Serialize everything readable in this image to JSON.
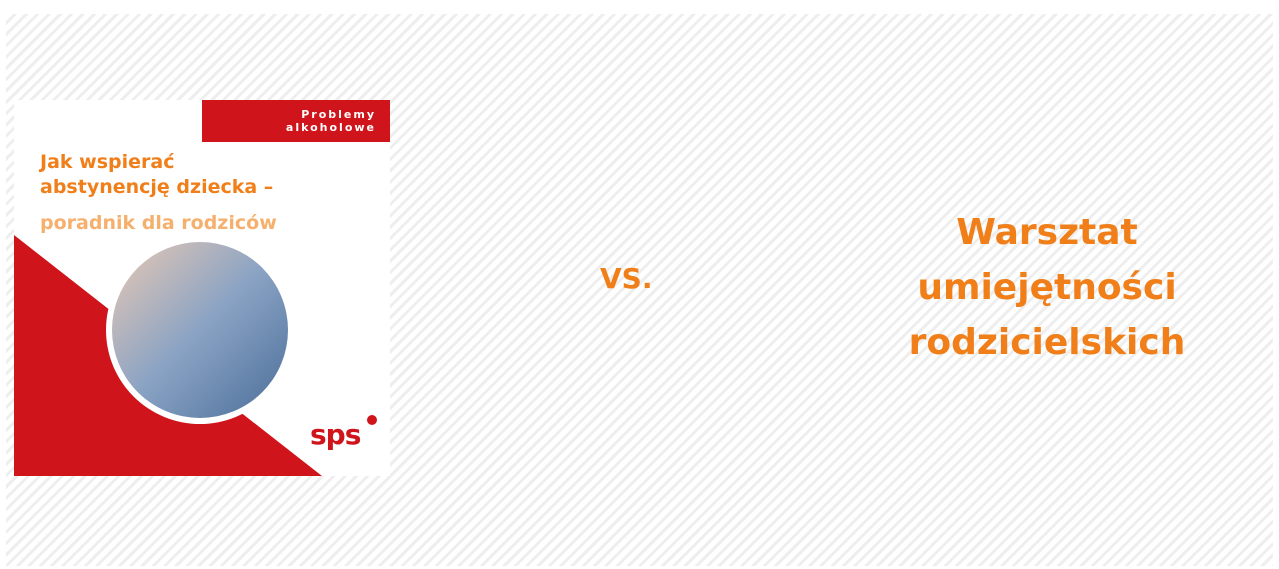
{
  "cover": {
    "badge": [
      "Problemy",
      "alkoholowe"
    ],
    "title": [
      "Jak wspierać",
      "abstynencję dziecka –"
    ],
    "subtitle": "poradnik dla rodziców",
    "logo": "sps"
  },
  "vs": "VS.",
  "workshop": [
    "Warsztat",
    "umiejętności",
    "rodzicielskich"
  ]
}
